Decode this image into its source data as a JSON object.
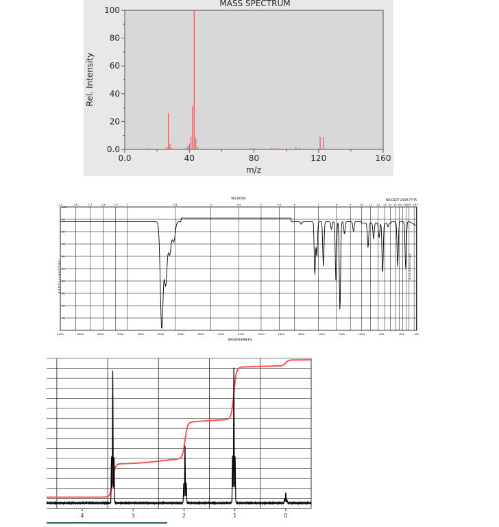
{
  "chart_data": [
    {
      "type": "bar",
      "title": "MASS SPECTRUM",
      "xlabel": "m/z",
      "ylabel": "Rel. Intensity",
      "xlim": [
        0,
        160
      ],
      "ylim": [
        0,
        100
      ],
      "xticks": [
        "0.0",
        "40",
        "80",
        "120",
        "160"
      ],
      "yticks": [
        "0.0",
        "20",
        "40",
        "60",
        "80",
        "100"
      ],
      "bar_color": "#e06060",
      "peaks": [
        {
          "x": 15,
          "y": 1
        },
        {
          "x": 26,
          "y": 2
        },
        {
          "x": 27,
          "y": 26
        },
        {
          "x": 28,
          "y": 4
        },
        {
          "x": 29,
          "y": 1
        },
        {
          "x": 38,
          "y": 1
        },
        {
          "x": 39,
          "y": 2
        },
        {
          "x": 40,
          "y": 4
        },
        {
          "x": 41,
          "y": 9
        },
        {
          "x": 42,
          "y": 31
        },
        {
          "x": 43,
          "y": 100
        },
        {
          "x": 44,
          "y": 8
        },
        {
          "x": 45,
          "y": 2
        },
        {
          "x": 78,
          "y": 1
        },
        {
          "x": 80,
          "y": 1
        },
        {
          "x": 91,
          "y": 1
        },
        {
          "x": 93,
          "y": 1
        },
        {
          "x": 95,
          "y": 1
        },
        {
          "x": 106,
          "y": 2
        },
        {
          "x": 108,
          "y": 1
        },
        {
          "x": 121,
          "y": 9
        },
        {
          "x": 123,
          "y": 9
        }
      ]
    },
    {
      "type": "line",
      "title": "",
      "corner_label": "NICOLET 20SX FT-IR",
      "top_axis_label": "MICRONS",
      "xlabel": "WAVENUMBERS",
      "ylabel": "TRANSMITTANCE",
      "right_axis_label": "ABSORBANCE",
      "xlim": [
        4000,
        450
      ],
      "ylim": [
        0,
        100
      ],
      "x_ticks": [
        "4000",
        "3800",
        "3600",
        "3400",
        "3200",
        "3000",
        "2800",
        "2600",
        "2400",
        "2200",
        "2000",
        "1800",
        "1600",
        "1400",
        "1200",
        "1000",
        "800",
        "600",
        "450"
      ],
      "y_ticks": [
        "10",
        "20",
        "30",
        "40",
        "50",
        "60",
        "70",
        "80",
        "90",
        "100"
      ],
      "micron_ticks": [
        "2.5",
        "2.6",
        "2.7",
        "2.8",
        "2.9",
        "3",
        "3.5",
        "4",
        "4.5",
        "5",
        "5.5",
        "6",
        "7",
        "8",
        "9",
        "10",
        "11",
        "12",
        "13",
        "14",
        "15",
        "16",
        "17",
        "18",
        "19",
        "21",
        "22"
      ],
      "line_color": "#000000",
      "baseline": 88,
      "bands": [
        {
          "wavenumber": 2990,
          "transmittance": 2
        },
        {
          "wavenumber": 2950,
          "transmittance": 38
        },
        {
          "wavenumber": 2910,
          "transmittance": 62
        },
        {
          "wavenumber": 2870,
          "transmittance": 72
        },
        {
          "wavenumber": 1600,
          "transmittance": 86
        },
        {
          "wavenumber": 1465,
          "transmittance": 45
        },
        {
          "wavenumber": 1445,
          "transmittance": 60
        },
        {
          "wavenumber": 1380,
          "transmittance": 52
        },
        {
          "wavenumber": 1300,
          "transmittance": 82
        },
        {
          "wavenumber": 1255,
          "transmittance": 40
        },
        {
          "wavenumber": 1215,
          "transmittance": 16
        },
        {
          "wavenumber": 1170,
          "transmittance": 78
        },
        {
          "wavenumber": 1080,
          "transmittance": 80
        },
        {
          "wavenumber": 935,
          "transmittance": 68
        },
        {
          "wavenumber": 880,
          "transmittance": 75
        },
        {
          "wavenumber": 825,
          "transmittance": 76
        },
        {
          "wavenumber": 790,
          "transmittance": 47
        },
        {
          "wavenumber": 735,
          "transmittance": 85
        },
        {
          "wavenumber": 640,
          "transmittance": 52
        },
        {
          "wavenumber": 560,
          "transmittance": 50
        }
      ]
    },
    {
      "type": "line",
      "title": "",
      "xlabel": "",
      "xlim": [
        4.7,
        -0.5
      ],
      "x_ticks": [
        "4",
        "3",
        "2",
        "1",
        "0"
      ],
      "spectrum_color": "#000000",
      "integral_color": "#ff5050",
      "peaks": [
        {
          "ppm": 3.4,
          "height": 0.88
        },
        {
          "ppm": 1.98,
          "height": 0.38
        },
        {
          "ppm": 1.02,
          "height": 0.9
        },
        {
          "ppm": 0.0,
          "height": 0.07
        }
      ],
      "integral_steps": [
        {
          "ppm": 3.4,
          "level_before": 0.04,
          "level_after": 0.27
        },
        {
          "ppm": 1.98,
          "level_before": 0.31,
          "level_after": 0.56
        },
        {
          "ppm": 1.02,
          "level_before": 0.58,
          "level_after": 0.94
        },
        {
          "ppm": 0.0,
          "level_before": 0.95,
          "level_after": 0.99
        }
      ]
    }
  ]
}
